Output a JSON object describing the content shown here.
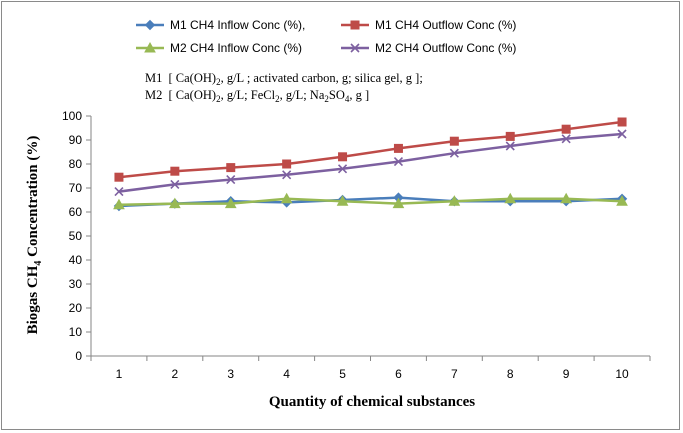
{
  "chart_data": {
    "type": "line",
    "title": "",
    "xlabel": "Quantity of chemical substances",
    "ylabel": "Biogas CH4 Concentration (%)",
    "ylabel_parts": {
      "before": "Biogas CH",
      "sub": "4",
      "after": " Concentration (%)"
    },
    "x": [
      1,
      2,
      3,
      4,
      5,
      6,
      7,
      8,
      9,
      10
    ],
    "ylim": [
      0,
      100
    ],
    "yticks": [
      0,
      10,
      20,
      30,
      40,
      50,
      60,
      70,
      80,
      90,
      100
    ],
    "grid": false,
    "legend_position": "top",
    "series": [
      {
        "name": "M1 CH4 Inflow Conc (%),",
        "color": "#4a7ebb",
        "marker": "diamond",
        "values": [
          62.5,
          63.5,
          64.5,
          64,
          65,
          66,
          64.5,
          64.5,
          64.5,
          65.5
        ]
      },
      {
        "name": "M1 CH4 Outflow Conc (%)",
        "color": "#be4b48",
        "marker": "square",
        "values": [
          74.5,
          77,
          78.5,
          80,
          83,
          86.5,
          89.5,
          91.5,
          94.5,
          97.5
        ]
      },
      {
        "name": "M2 CH4 Inflow Conc (%)",
        "color": "#98b954",
        "marker": "triangle",
        "values": [
          63,
          63.5,
          63.5,
          65.5,
          64.5,
          63.5,
          64.5,
          65.5,
          65.5,
          64.5
        ]
      },
      {
        "name": "M2 CH4 Outflow Conc (%)",
        "color": "#7d60a0",
        "marker": "x",
        "values": [
          68.5,
          71.5,
          73.5,
          75.5,
          78,
          81,
          84.5,
          87.5,
          90.5,
          92.5
        ]
      }
    ],
    "annotations": {
      "m1": {
        "label": "M1",
        "parts": [
          "[ Ca(OH)",
          "2",
          ", g/L ; activated carbon, g; silica gel, g ];"
        ]
      },
      "m2": {
        "label": "M2",
        "parts": [
          "[ Ca(OH)",
          "2",
          ", g/L; FeCl",
          "2",
          ", g/L; Na",
          "2",
          "SO",
          "4",
          ", g ]"
        ]
      }
    }
  }
}
